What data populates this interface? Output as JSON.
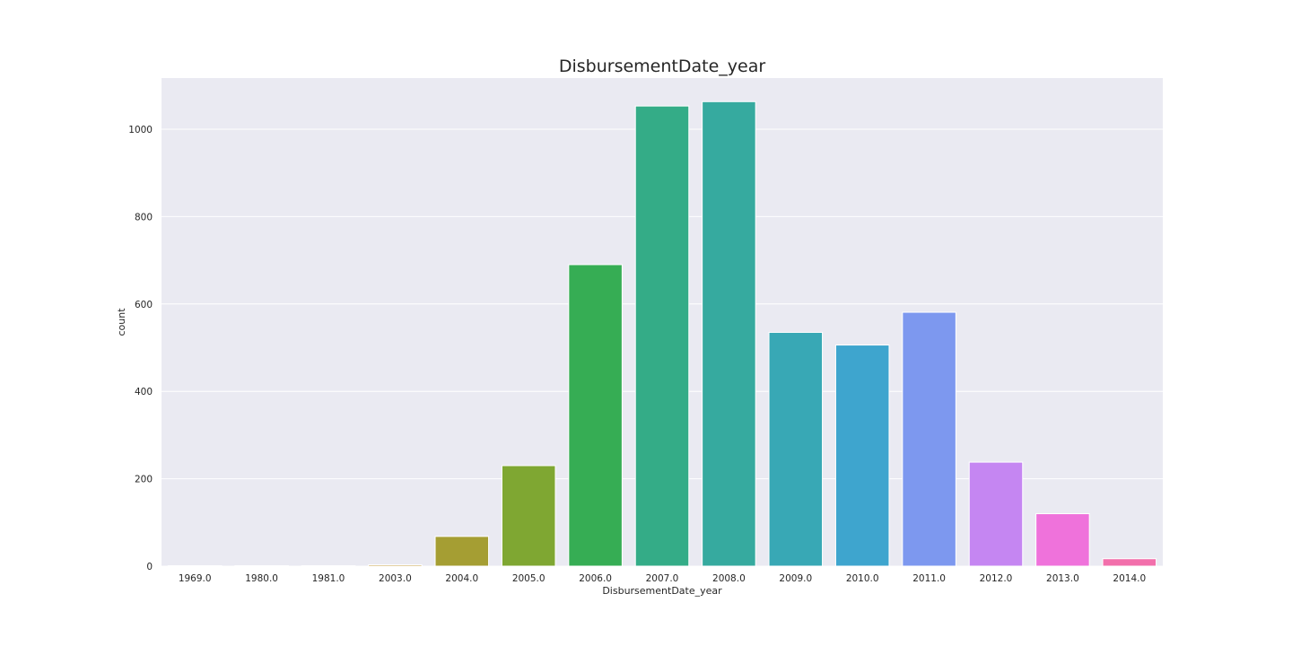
{
  "chart_data": {
    "type": "bar",
    "title": "DisbursementDate_year",
    "xlabel": "DisbursementDate_year",
    "ylabel": "count",
    "categories": [
      "1969.0",
      "1980.0",
      "1981.0",
      "2003.0",
      "2004.0",
      "2005.0",
      "2006.0",
      "2007.0",
      "2008.0",
      "2009.0",
      "2010.0",
      "2011.0",
      "2012.0",
      "2013.0",
      "2014.0"
    ],
    "values": [
      1,
      1,
      1,
      3,
      68,
      230,
      690,
      1053,
      1063,
      535,
      506,
      581,
      238,
      120,
      17
    ],
    "colors": [
      "#f77189",
      "#f47c4e",
      "#dc8932",
      "#c29633",
      "#a59e33",
      "#7fa732",
      "#36ad54",
      "#34ac87",
      "#36aa9f",
      "#38a8b5",
      "#3ea5ce",
      "#7d98ef",
      "#c586f2",
      "#ef72db",
      "#f26fab"
    ],
    "ylim": [
      0,
      1117
    ],
    "yticks": [
      0,
      200,
      400,
      600,
      800,
      1000
    ],
    "grid": true,
    "background": "#eaeaf2",
    "grid_color": "#ffffff"
  }
}
